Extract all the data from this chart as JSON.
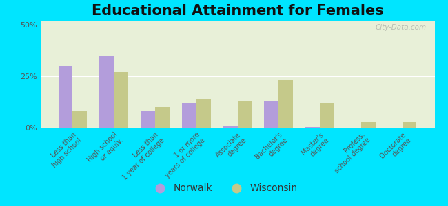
{
  "title": "Educational Attainment for Females",
  "categories": [
    "Less than\nhigh school",
    "High school\nor equiv.",
    "Less than\n1 year of college",
    "1 or more\nyears of college",
    "Associate\ndegree",
    "Bachelor's\ndegree",
    "Master's\ndegree",
    "Profess.\nschool degree",
    "Doctorate\ndegree"
  ],
  "norwalk_values": [
    30,
    35,
    8,
    12,
    1,
    13,
    0.5,
    0,
    0
  ],
  "wisconsin_values": [
    8,
    27,
    10,
    14,
    13,
    23,
    12,
    3,
    3
  ],
  "norwalk_color": "#b39ddb",
  "wisconsin_color": "#c5c98a",
  "background_color": "#e8f0d8",
  "outer_background": "#00e5ff",
  "ylabel_ticks": [
    "0%",
    "25%",
    "50%"
  ],
  "ytick_values": [
    0,
    25,
    50
  ],
  "ylim": [
    0,
    52
  ],
  "bar_width": 0.35,
  "legend_labels": [
    "Norwalk",
    "Wisconsin"
  ],
  "title_fontsize": 15,
  "tick_fontsize": 7,
  "legend_fontsize": 10,
  "watermark": "City-Data.com"
}
